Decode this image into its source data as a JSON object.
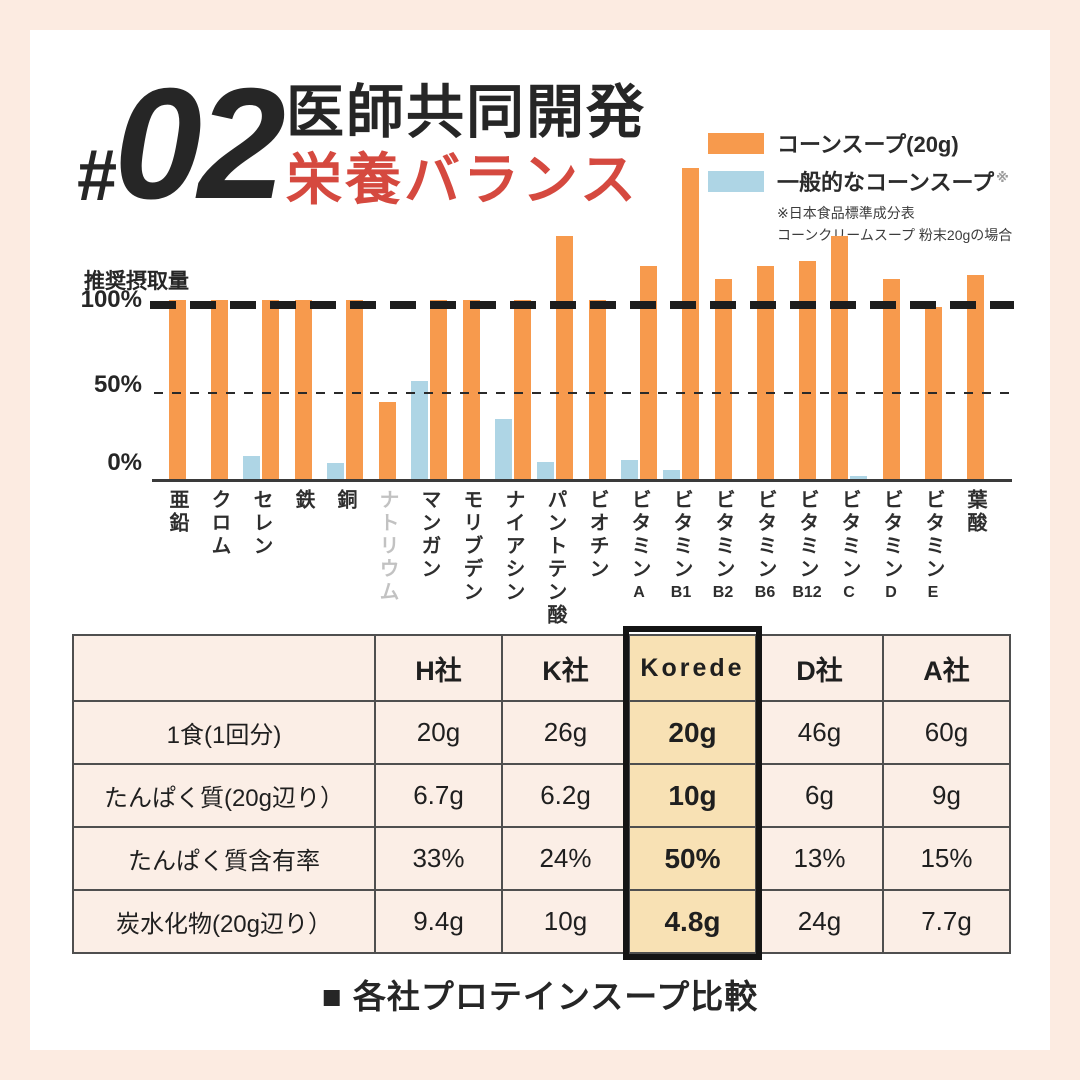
{
  "colors": {
    "frame_pink": "#FCEBE1",
    "card_white": "#FFFFFF",
    "accent_orange": "#F79A4D",
    "accent_blue": "#AED5E5",
    "accent_red": "#D5493F",
    "highlight_cell": "#F8E1B4",
    "table_cell": "#FBEEE6"
  },
  "header": {
    "hash": "#",
    "number": "02",
    "title_black": "医師共同開発",
    "title_red": "栄養バランス"
  },
  "legend": {
    "series1_label": "コーンスープ(20g)",
    "series2_label": "一般的なコーンスープ",
    "series2_sup": "※",
    "note1": "※日本食品標準成分表",
    "note2": "コーンクリームスープ 粉末20gの場合"
  },
  "chart_data": {
    "type": "bar",
    "axis_title": "推奨摂取量",
    "y_ticks": [
      "100%",
      "50%",
      "0%"
    ],
    "ylim": [
      0,
      180
    ],
    "unit": "percent_of_recommended_intake",
    "reference_lines": [
      100,
      50
    ],
    "grid": false,
    "legend_position": "top-right",
    "categories": [
      "亜鉛",
      "クロム",
      "セレン",
      "鉄",
      "銅",
      "ナトリウム",
      "マンガン",
      "モリブデン",
      "ナイアシン",
      "パントテン酸",
      "ビオチン",
      "ビタミンA",
      "ビタミンB1",
      "ビタミンB2",
      "ビタミンB6",
      "ビタミンB12",
      "ビタミンC",
      "ビタミンD",
      "ビタミンE",
      "葉酸"
    ],
    "series": [
      {
        "name": "コーンスープ(20g)",
        "color": "#F79A4D",
        "values": [
          103,
          103,
          103,
          103,
          103,
          45,
          103,
          103,
          103,
          139,
          103,
          122,
          178,
          115,
          122,
          125,
          139,
          115,
          99,
          117
        ]
      },
      {
        "name": "一般的なコーンスープ",
        "color": "#AED5E5",
        "values": [
          0,
          0,
          14,
          0,
          10,
          0,
          57,
          0,
          35,
          11,
          0,
          12,
          6,
          0,
          0,
          0,
          3,
          0,
          0,
          0
        ]
      }
    ],
    "muted_categories": [
      "ナトリウム"
    ],
    "blue_right_categories": [
      "ビタミンC"
    ]
  },
  "table": {
    "header": [
      "",
      "H社",
      "K社",
      "Korede",
      "D社",
      "A社"
    ],
    "highlight_column": 3,
    "rows": [
      {
        "label": "1食(1回分)",
        "values": [
          "20g",
          "26g",
          "20g",
          "46g",
          "60g"
        ]
      },
      {
        "label": "たんぱく質(20g辺り）",
        "values": [
          "6.7g",
          "6.2g",
          "10g",
          "6g",
          "9g"
        ]
      },
      {
        "label": "たんぱく質含有率",
        "values": [
          "33%",
          "24%",
          "50%",
          "13%",
          "15%"
        ]
      },
      {
        "label": "炭水化物(20g辺り）",
        "values": [
          "9.4g",
          "10g",
          "4.8g",
          "24g",
          "7.7g"
        ]
      }
    ]
  },
  "footer": {
    "caption": "■ 各社プロテインスープ比較"
  }
}
